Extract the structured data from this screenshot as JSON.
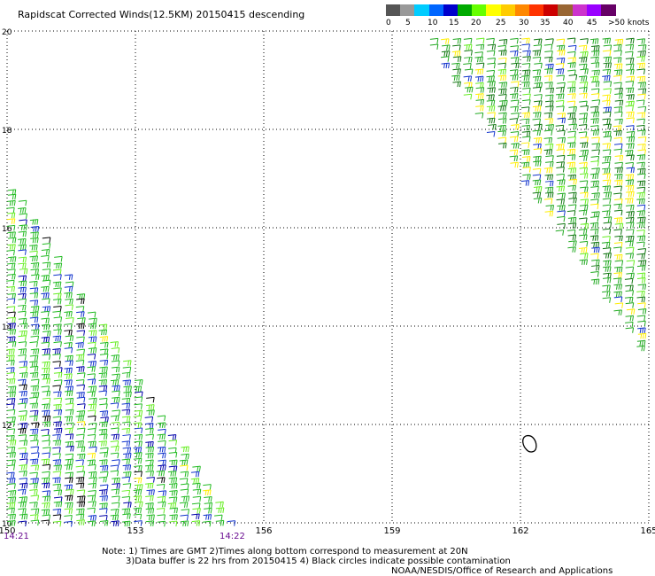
{
  "header": {
    "title": "Rapidscat Corrected Winds(12.5KM) 20150415 descending"
  },
  "scale": {
    "colors": [
      "#555555",
      "#999999",
      "#00ccff",
      "#0066ff",
      "#0000cc",
      "#00aa00",
      "#66ff00",
      "#ffff00",
      "#ffcc00",
      "#ff8800",
      "#ff3300",
      "#cc0000",
      "#996633",
      "#cc33cc",
      "#9900ff",
      "#660066"
    ],
    "labels": [
      "0",
      "5",
      "10",
      "15",
      "20",
      "25",
      "30",
      "35",
      "40",
      "45",
      ">50 knots"
    ]
  },
  "chart_data": {
    "type": "scatter",
    "x_ticks": [
      "150",
      "153",
      "156",
      "159",
      "162",
      "165"
    ],
    "y_ticks": [
      "20",
      "18",
      "16",
      "14",
      "12",
      "10"
    ],
    "xlim": [
      150,
      165
    ],
    "ylim": [
      10,
      20
    ],
    "grid": true,
    "swaths": [
      {
        "polygon": [
          [
            150,
            16.9
          ],
          [
            150,
            10
          ],
          [
            155.2,
            10
          ]
        ],
        "dominant_speed_knots": 17
      },
      {
        "polygon": [
          [
            159.6,
            19.95
          ],
          [
            165,
            19.95
          ],
          [
            165,
            13.2
          ]
        ],
        "dominant_speed_knots": 22
      }
    ],
    "contamination_circles": [
      {
        "x": 162.2,
        "y": 11.6
      }
    ]
  },
  "times": {
    "left": "14:21",
    "mid": "14:22"
  },
  "notes": {
    "line1": "Note: 1) Times are GMT 2)Times along bottom correspond to measurement at 20N",
    "line2": "3)Data buffer is 22 hrs from 20150415 4) Black circles indicate possible contamination",
    "credit": "NOAA/NESDIS/Office of Research and Applications"
  }
}
